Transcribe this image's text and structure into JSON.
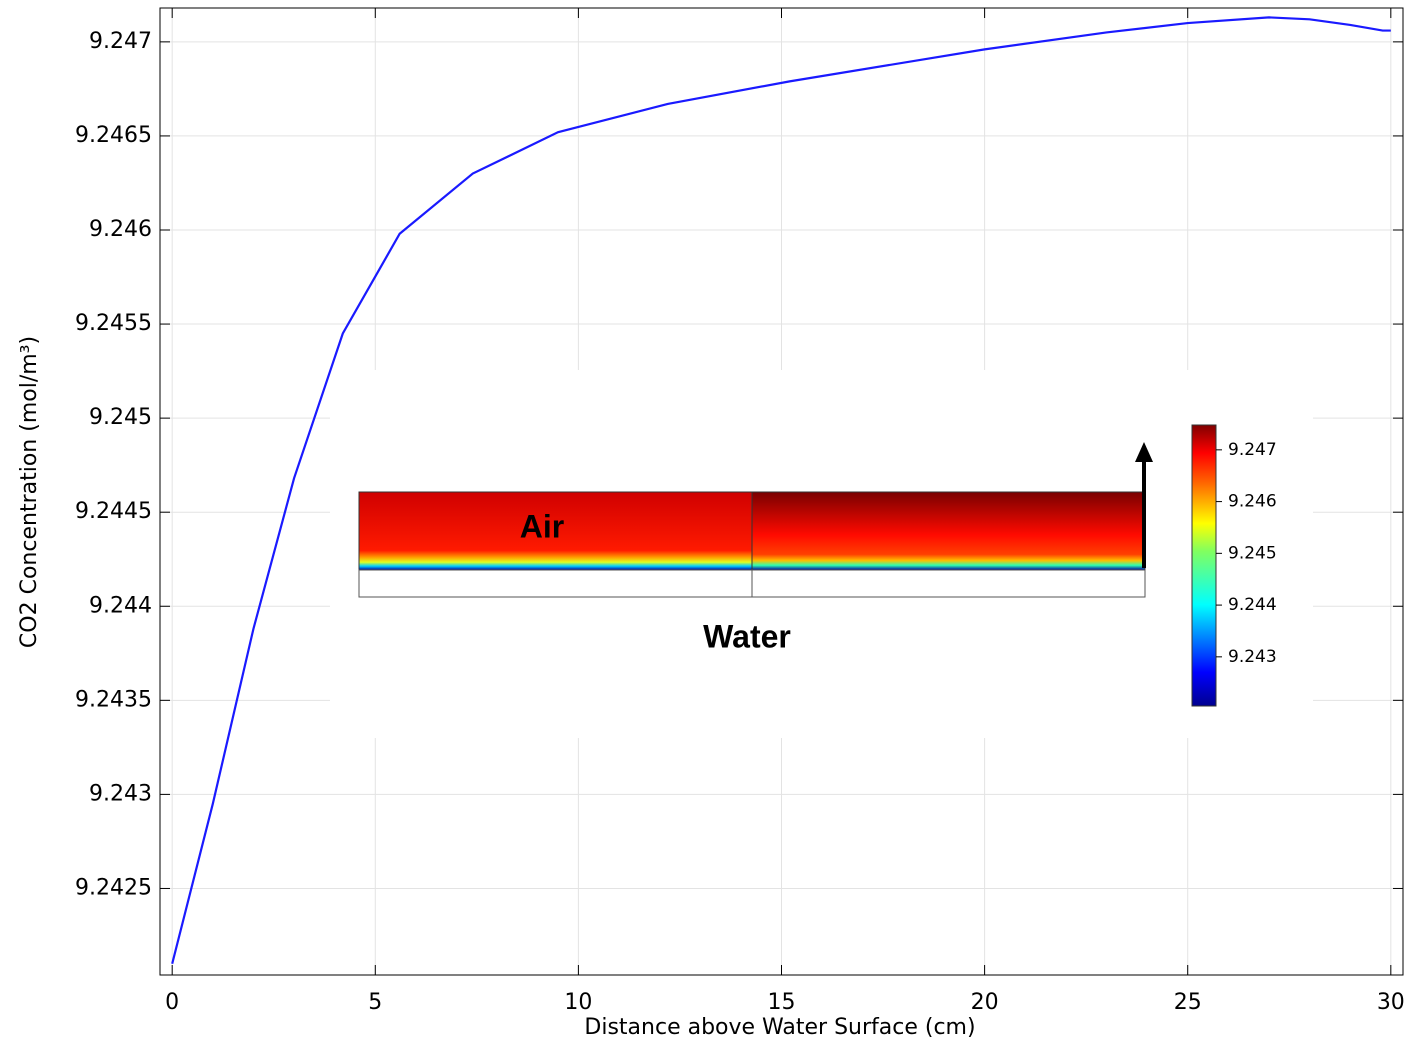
{
  "chart_data": {
    "type": "line",
    "xlabel": "Distance above Water Surface (cm)",
    "ylabel": "CO2 Concentration (mol/m³)",
    "x": [
      0,
      1,
      2,
      3,
      4.2,
      5.6,
      7.4,
      9.5,
      12.2,
      15.2,
      20,
      23,
      25,
      27,
      28,
      29,
      29.8,
      30
    ],
    "series": [
      {
        "color": "#1a1aff",
        "values": [
          9.2421,
          9.24295,
          9.24388,
          9.24468,
          9.24545,
          9.24598,
          9.2463,
          9.24652,
          9.24667,
          9.24679,
          9.24696,
          9.24705,
          9.2471,
          9.24713,
          9.24712,
          9.24709,
          9.24706,
          9.24706
        ]
      }
    ],
    "xlim": [
      -0.3,
      30.3
    ],
    "ylim": [
      9.24204,
      9.24718
    ],
    "xticks": [
      0,
      5,
      10,
      15,
      20,
      25,
      30
    ],
    "yticks": [
      9.2425,
      9.243,
      9.2435,
      9.244,
      9.2445,
      9.245,
      9.2455,
      9.246,
      9.2465,
      9.247
    ],
    "grid": true,
    "inset": {
      "air_label": "Air",
      "water_label": "Water",
      "colorbar": {
        "lim": [
          9.24205,
          9.24748
        ],
        "ticks": [
          9.243,
          9.244,
          9.245,
          9.246,
          9.247
        ]
      }
    }
  }
}
